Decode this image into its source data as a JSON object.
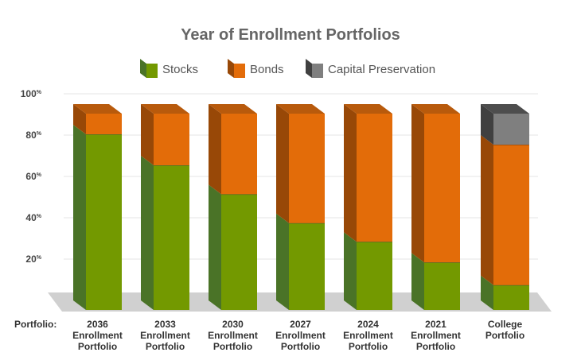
{
  "chart_data": {
    "type": "bar",
    "stacked": true,
    "title": "Year of Enrollment Portfolios",
    "category_prefix": "Portfolio:",
    "categories": [
      [
        "2036",
        "Enrollment",
        "Portfolio"
      ],
      [
        "2033",
        "Enrollment",
        "Portfolio"
      ],
      [
        "2030",
        "Enrollment",
        "Portfolio"
      ],
      [
        "2027",
        "Enrollment",
        "Portfolio"
      ],
      [
        "2024",
        "Enrollment",
        "Portfolio"
      ],
      [
        "2021",
        "Enrollment",
        "Portfolio"
      ],
      [
        "College",
        "Portfolio"
      ]
    ],
    "series": [
      {
        "name": "Stocks",
        "values": [
          85,
          70,
          56,
          42,
          33,
          23,
          12
        ],
        "color": "#739900",
        "side_color": "#4a7327",
        "top_color": "#8aad2a"
      },
      {
        "name": "Bonds",
        "values": [
          10,
          25,
          39,
          53,
          62,
          72,
          68
        ],
        "color": "#e36c09",
        "side_color": "#984807",
        "top_color": "#b85a0c"
      },
      {
        "name": "Capital Preservation",
        "values": [
          0,
          0,
          0,
          0,
          0,
          0,
          15
        ],
        "color": "#7f7f7f",
        "side_color": "#404040",
        "top_color": "#4d4d4d"
      }
    ],
    "yticks": [
      "20",
      "40",
      "60",
      "80",
      "100"
    ],
    "ytick_unit": "%",
    "ylim": [
      0,
      100
    ],
    "grid": true,
    "legend_position": "top"
  }
}
